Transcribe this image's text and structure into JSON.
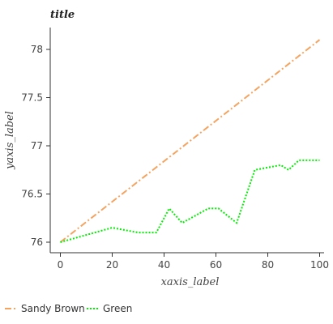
{
  "chart_data": {
    "type": "line",
    "title": "title",
    "xlabel": "xaxis_label",
    "ylabel": "yaxis_label",
    "xlim": [
      0,
      100
    ],
    "ylim": [
      76,
      78.25
    ],
    "x_ticks": [
      0,
      20,
      40,
      60,
      80,
      100
    ],
    "y_ticks": [
      76,
      76.5,
      77,
      77.5,
      78
    ],
    "x_tick_labels": [
      "0",
      "20",
      "40",
      "60",
      "80",
      "100"
    ],
    "y_tick_labels": [
      "76",
      "76.5",
      "77",
      "77.5",
      "78"
    ],
    "grid": false,
    "legend_position": "bottom",
    "series": [
      {
        "name": "Sandy Brown",
        "color": "#f4a460",
        "style": "dash-dot",
        "x": [
          0,
          100
        ],
        "y": [
          76,
          78.1
        ]
      },
      {
        "name": "Green",
        "color": "#00ee00",
        "style": "dotted",
        "x": [
          0,
          20,
          30,
          37,
          42,
          47,
          57,
          61,
          68,
          75,
          85,
          88,
          92,
          100
        ],
        "y": [
          76,
          76.15,
          76.1,
          76.1,
          76.35,
          76.2,
          76.35,
          76.35,
          76.2,
          76.75,
          76.8,
          76.75,
          76.85,
          76.85
        ]
      }
    ]
  }
}
